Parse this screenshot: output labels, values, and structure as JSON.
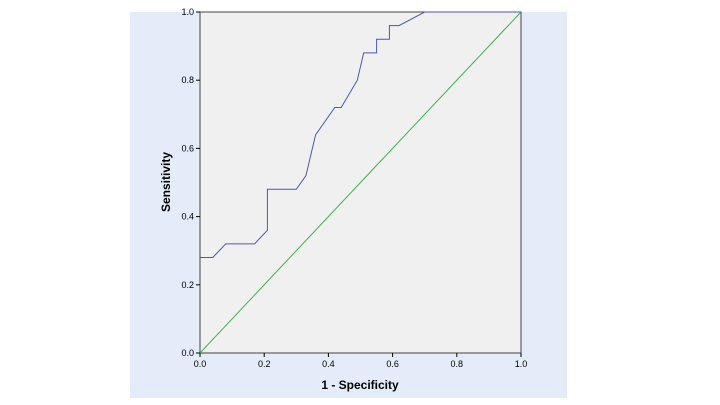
{
  "chart_data": {
    "type": "line",
    "title": "",
    "xlabel": "1 - Specificity",
    "ylabel": "Sensitivity",
    "xlim": [
      0,
      1
    ],
    "ylim": [
      0,
      1
    ],
    "x_ticks": [
      "0.0",
      "0.2",
      "0.4",
      "0.6",
      "0.8",
      "1.0"
    ],
    "y_ticks": [
      "0.0",
      "0.2",
      "0.4",
      "0.6",
      "0.8",
      "1.0"
    ],
    "grid": false,
    "colors": {
      "background": "#e3ecf8",
      "plot_area": "#f0f0f0",
      "roc_curve": "#4a5aa8",
      "reference_line": "#3cb44b"
    },
    "series": [
      {
        "x": [
          0.0,
          0.04,
          0.08,
          0.17,
          0.21,
          0.21,
          0.3,
          0.33,
          0.36,
          0.42,
          0.44,
          0.49,
          0.51,
          0.55,
          0.55,
          0.59,
          0.59,
          0.62,
          0.7,
          1.0
        ],
        "y": [
          0.28,
          0.28,
          0.32,
          0.32,
          0.36,
          0.48,
          0.48,
          0.52,
          0.64,
          0.72,
          0.72,
          0.8,
          0.88,
          0.88,
          0.92,
          0.92,
          0.96,
          0.96,
          1.0,
          1.0
        ]
      },
      {
        "x": [
          0.0,
          1.0
        ],
        "y": [
          0.0,
          1.0
        ]
      }
    ]
  }
}
